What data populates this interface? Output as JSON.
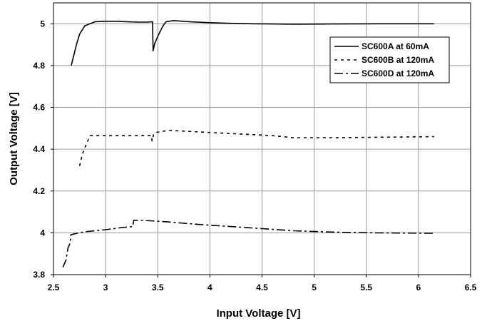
{
  "chart_data": {
    "type": "line",
    "title": "",
    "xlabel": "Input Voltage [V]",
    "ylabel": "Output Voltage [V]",
    "xlim": [
      2.5,
      6.5
    ],
    "ylim": [
      3.8,
      5.1
    ],
    "x_ticks": [
      "2.5",
      "3",
      "3.5",
      "4",
      "4.5",
      "5",
      "5.5",
      "6",
      "6.5"
    ],
    "y_ticks": [
      "3.8",
      "4",
      "4.2",
      "4.4",
      "4.6",
      "4.8",
      "5"
    ],
    "grid": true,
    "legend_position": "top-right",
    "series": [
      {
        "name": "SC600A at 60mA",
        "dash": "solid",
        "points": [
          [
            2.67,
            4.8
          ],
          [
            2.7,
            4.86
          ],
          [
            2.72,
            4.9
          ],
          [
            2.75,
            4.95
          ],
          [
            2.8,
            4.99
          ],
          [
            2.85,
            5.0
          ],
          [
            2.9,
            5.01
          ],
          [
            3.0,
            5.012
          ],
          [
            3.1,
            5.012
          ],
          [
            3.2,
            5.01
          ],
          [
            3.3,
            5.008
          ],
          [
            3.4,
            5.008
          ],
          [
            3.45,
            5.01
          ],
          [
            3.455,
            4.87
          ],
          [
            3.47,
            4.905
          ],
          [
            3.5,
            4.94
          ],
          [
            3.55,
            4.99
          ],
          [
            3.58,
            5.01
          ],
          [
            3.65,
            5.015
          ],
          [
            3.8,
            5.01
          ],
          [
            4.0,
            5.005
          ],
          [
            4.2,
            5.002
          ],
          [
            4.4,
            5.0
          ],
          [
            4.8,
            4.998
          ],
          [
            5.2,
            4.999
          ],
          [
            5.6,
            5.0
          ],
          [
            6.15,
            5.0
          ]
        ]
      },
      {
        "name": "SC600B at 120mA",
        "dash": "dotted",
        "points": [
          [
            2.75,
            4.32
          ],
          [
            2.78,
            4.38
          ],
          [
            2.82,
            4.43
          ],
          [
            2.85,
            4.465
          ],
          [
            3.0,
            4.465
          ],
          [
            3.2,
            4.465
          ],
          [
            3.44,
            4.465
          ],
          [
            3.445,
            4.44
          ],
          [
            3.46,
            4.47
          ],
          [
            3.48,
            4.48
          ],
          [
            3.6,
            4.49
          ],
          [
            3.8,
            4.485
          ],
          [
            4.2,
            4.475
          ],
          [
            4.6,
            4.465
          ],
          [
            4.7,
            4.46
          ],
          [
            4.8,
            4.455
          ],
          [
            5.2,
            4.455
          ],
          [
            5.6,
            4.457
          ],
          [
            6.15,
            4.46
          ]
        ]
      },
      {
        "name": "SC600D at 120mA",
        "dash": "dash-dot",
        "points": [
          [
            2.59,
            3.835
          ],
          [
            2.62,
            3.87
          ],
          [
            2.63,
            3.9
          ],
          [
            2.64,
            3.93
          ],
          [
            2.66,
            3.95
          ],
          [
            2.665,
            3.99
          ],
          [
            2.7,
            3.995
          ],
          [
            2.8,
            4.005
          ],
          [
            3.0,
            4.015
          ],
          [
            3.15,
            4.025
          ],
          [
            3.26,
            4.03
          ],
          [
            3.27,
            4.06
          ],
          [
            3.35,
            4.06
          ],
          [
            3.6,
            4.052
          ],
          [
            3.9,
            4.04
          ],
          [
            4.2,
            4.03
          ],
          [
            4.5,
            4.02
          ],
          [
            4.8,
            4.01
          ],
          [
            5.2,
            4.003
          ],
          [
            5.6,
            4.0
          ],
          [
            6.15,
            3.998
          ]
        ]
      }
    ]
  }
}
